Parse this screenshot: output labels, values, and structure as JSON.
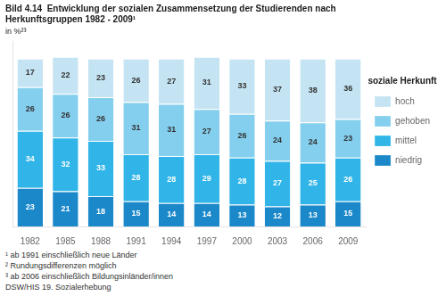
{
  "chart_data": {
    "type": "bar",
    "stacked": true,
    "title": [
      "Bild 4.14  Entwicklung der sozialen Zusammensetzung der Studierenden nach",
      "Herkunftsgruppen 1982 - 2009¹"
    ],
    "subtitle": "in %²³",
    "categories": [
      "1982",
      "1985",
      "1988",
      "1991",
      "1994",
      "1997",
      "2000",
      "2003",
      "2006",
      "2009"
    ],
    "series": [
      {
        "name": "niedrig",
        "color": "#1a88c9",
        "values": [
          23,
          21,
          18,
          15,
          14,
          14,
          13,
          12,
          13,
          15
        ]
      },
      {
        "name": "mittel",
        "color": "#31b5e8",
        "values": [
          34,
          32,
          33,
          28,
          28,
          29,
          28,
          27,
          25,
          26
        ]
      },
      {
        "name": "gehoben",
        "color": "#85cfee",
        "values": [
          26,
          26,
          26,
          31,
          31,
          27,
          26,
          24,
          24,
          23
        ]
      },
      {
        "name": "hoch",
        "color": "#c5e4f3",
        "values": [
          17,
          22,
          23,
          26,
          27,
          31,
          33,
          37,
          38,
          36
        ]
      }
    ],
    "ylim": [
      0,
      110
    ],
    "tick_labels": "x",
    "grid": false,
    "legend": "right",
    "legend_title": "soziale Herkunft",
    "data_labels": true,
    "annotations": [
      "¹ ab 1991 einschließlich neue Länder",
      "² Rundungsdifferenzen möglich",
      "³ ab 2006 einschließlich Bildungsinländer/innen",
      "DSW/HIS 19. Sozialerhebung"
    ]
  }
}
